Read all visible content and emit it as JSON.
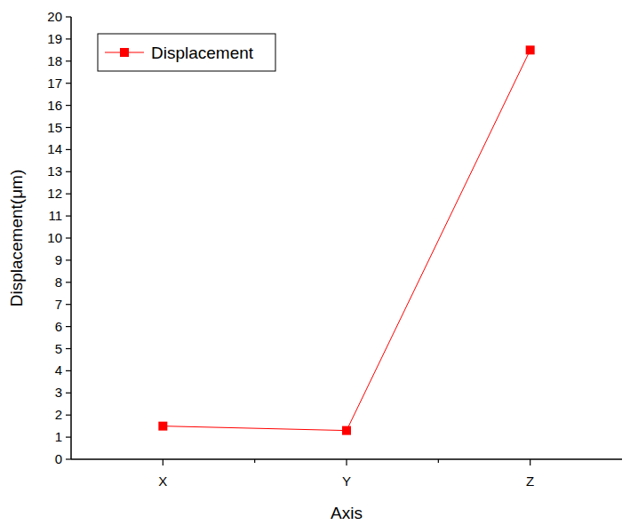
{
  "chart_data": {
    "type": "line",
    "x_label": "Axis",
    "y_label": "Displacement(μm)",
    "categories": [
      "X",
      "Y",
      "Z"
    ],
    "series": [
      {
        "name": "Displacement",
        "color": "#ff0000",
        "marker": "square",
        "values": [
          1.5,
          1.3,
          18.5
        ]
      }
    ],
    "ylim": [
      0,
      20
    ],
    "yticks": [
      0,
      1,
      2,
      3,
      4,
      5,
      6,
      7,
      8,
      9,
      10,
      11,
      12,
      13,
      14,
      15,
      16,
      17,
      18,
      19,
      20
    ],
    "legend": "upper left",
    "grid": false
  }
}
